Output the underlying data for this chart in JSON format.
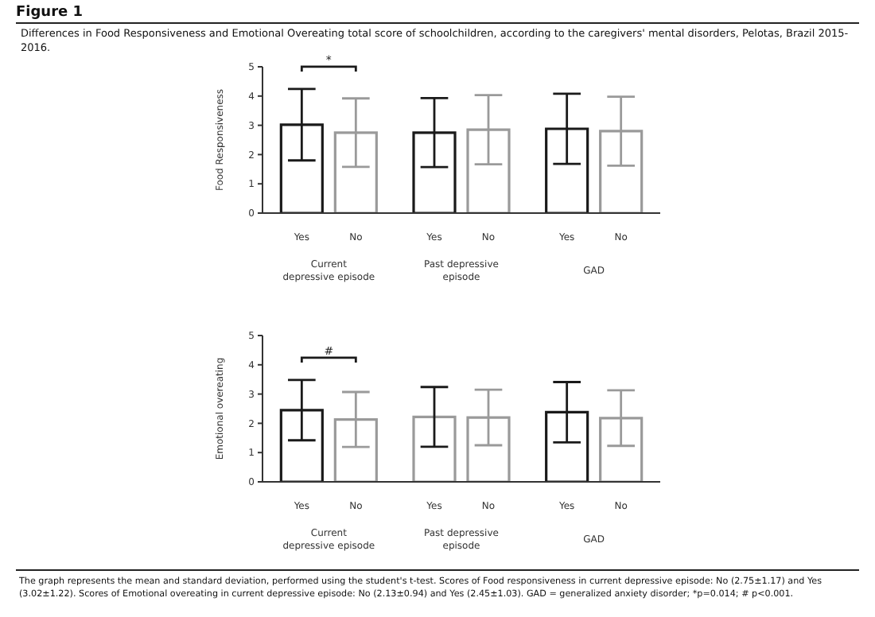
{
  "chart_data": [
    {
      "type": "bar",
      "ylabel": "Food Responsiveness",
      "categories": [
        "Current depressive episode",
        "Past depressive episode",
        "GAD"
      ],
      "ylim": [
        0,
        5
      ],
      "yticks": [
        0,
        1,
        2,
        3,
        4,
        5
      ],
      "series": [
        {
          "name": "Yes",
          "colors": [
            "#1a1a1a",
            "#1a1a1a",
            "#1a1a1a"
          ],
          "values": [
            3.02,
            2.75,
            2.88
          ],
          "errors": [
            1.22,
            1.18,
            1.2
          ]
        },
        {
          "name": "No",
          "colors": [
            "#9a9a9a",
            "#9a9a9a",
            "#9a9a9a"
          ],
          "values": [
            2.75,
            2.85,
            2.8
          ],
          "errors": [
            1.17,
            1.18,
            1.18
          ]
        }
      ],
      "annotations": [
        "Figure 1",
        "Differences in Food Responsiveness and Emotional Overeating total score of schoolchildren, according to the caregivers' mental disorders, Pelotas, Brazil 2015-2016.",
        "*"
      ]
    },
    {
      "type": "bar",
      "ylabel": "Emotional overeating",
      "categories": [
        "Current depressive episode",
        "Past depressive episode",
        "GAD"
      ],
      "ylim": [
        0,
        5
      ],
      "yticks": [
        0,
        1,
        2,
        3,
        4,
        5
      ],
      "series": [
        {
          "name": "Yes",
          "colors": [
            "#1a1a1a",
            "#9a9a9a",
            "#1a1a1a"
          ],
          "values": [
            2.45,
            2.22,
            2.38
          ],
          "errors": [
            1.03,
            1.02,
            1.03
          ]
        },
        {
          "name": "No",
          "colors": [
            "#9a9a9a",
            "#9a9a9a",
            "#9a9a9a"
          ],
          "values": [
            2.13,
            2.2,
            2.18
          ],
          "errors": [
            0.94,
            0.95,
            0.95
          ]
        }
      ],
      "annotations": [
        "#",
        "The graph represents the mean and standard deviation, performed using the student's t-test. Scores of Food responsiveness in current depressive episode: No (2.75±1.17) and Yes (3.02±1.22). Scores of Emotional overeating in current depressive episode: No (2.13±0.94) and Yes (2.45±1.03). GAD = generalized anxiety disorder; *p=0.014; # p<0.001."
      ]
    }
  ]
}
